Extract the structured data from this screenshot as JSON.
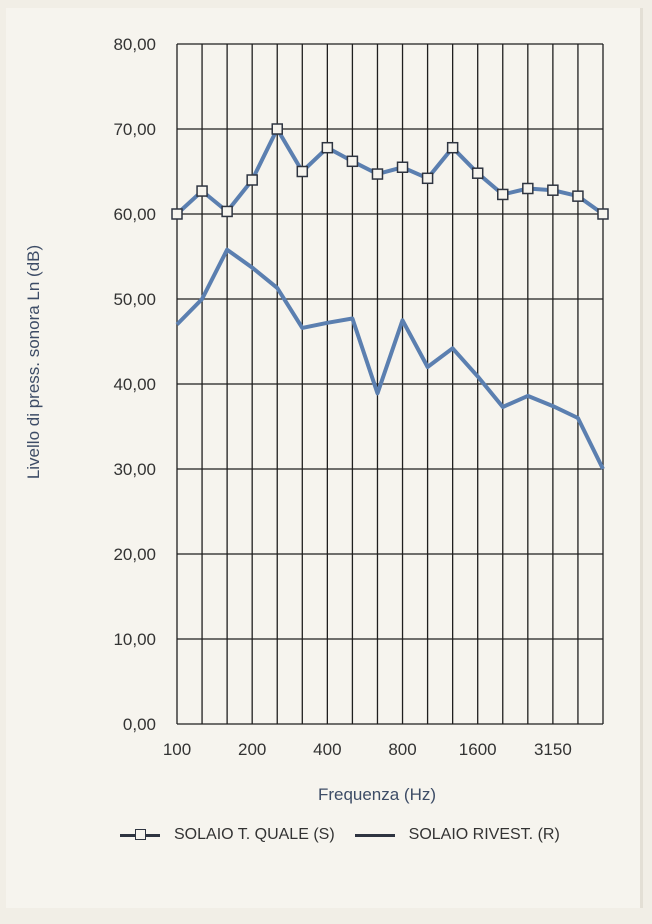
{
  "chart_data": {
    "type": "line",
    "title": "",
    "xlabel": "Frequenza (Hz)",
    "ylabel": "Livello di press. sonora Ln (dB)",
    "ylim": [
      0,
      80
    ],
    "yticks": [
      "0,00",
      "10,00",
      "20,00",
      "30,00",
      "40,00",
      "50,00",
      "60,00",
      "70,00",
      "80,00"
    ],
    "x": [
      "100",
      "125",
      "160",
      "200",
      "250",
      "315",
      "400",
      "500",
      "630",
      "800",
      "1000",
      "1250",
      "1600",
      "2000",
      "2500",
      "3150",
      "4000",
      "5000"
    ],
    "xtick_labels": [
      {
        "x": "100",
        "label": "100"
      },
      {
        "x": "200",
        "label": "200"
      },
      {
        "x": "400",
        "label": "400"
      },
      {
        "x": "800",
        "label": "800"
      },
      {
        "x": "1600",
        "label": "1600"
      },
      {
        "x": "3150",
        "label": "3150"
      }
    ],
    "grid": true,
    "series": [
      {
        "name": "SOLAIO T. QUALE (S)",
        "marker": "square",
        "color": "#5b7fb0",
        "values": [
          60.0,
          62.7,
          60.3,
          64.0,
          70.0,
          65.0,
          67.8,
          66.2,
          64.7,
          65.5,
          64.2,
          67.8,
          64.8,
          62.3,
          63.0,
          62.8,
          62.1,
          60.0
        ]
      },
      {
        "name": "SOLAIO RIVEST. (R)",
        "marker": "none",
        "color": "#5b7fb0",
        "values": [
          47.0,
          50.0,
          55.8,
          53.7,
          51.3,
          46.6,
          47.2,
          47.7,
          38.9,
          47.5,
          42.0,
          44.2,
          40.9,
          37.3,
          38.6,
          37.4,
          36.0,
          30.0
        ]
      }
    ],
    "legend_position": "bottom"
  }
}
